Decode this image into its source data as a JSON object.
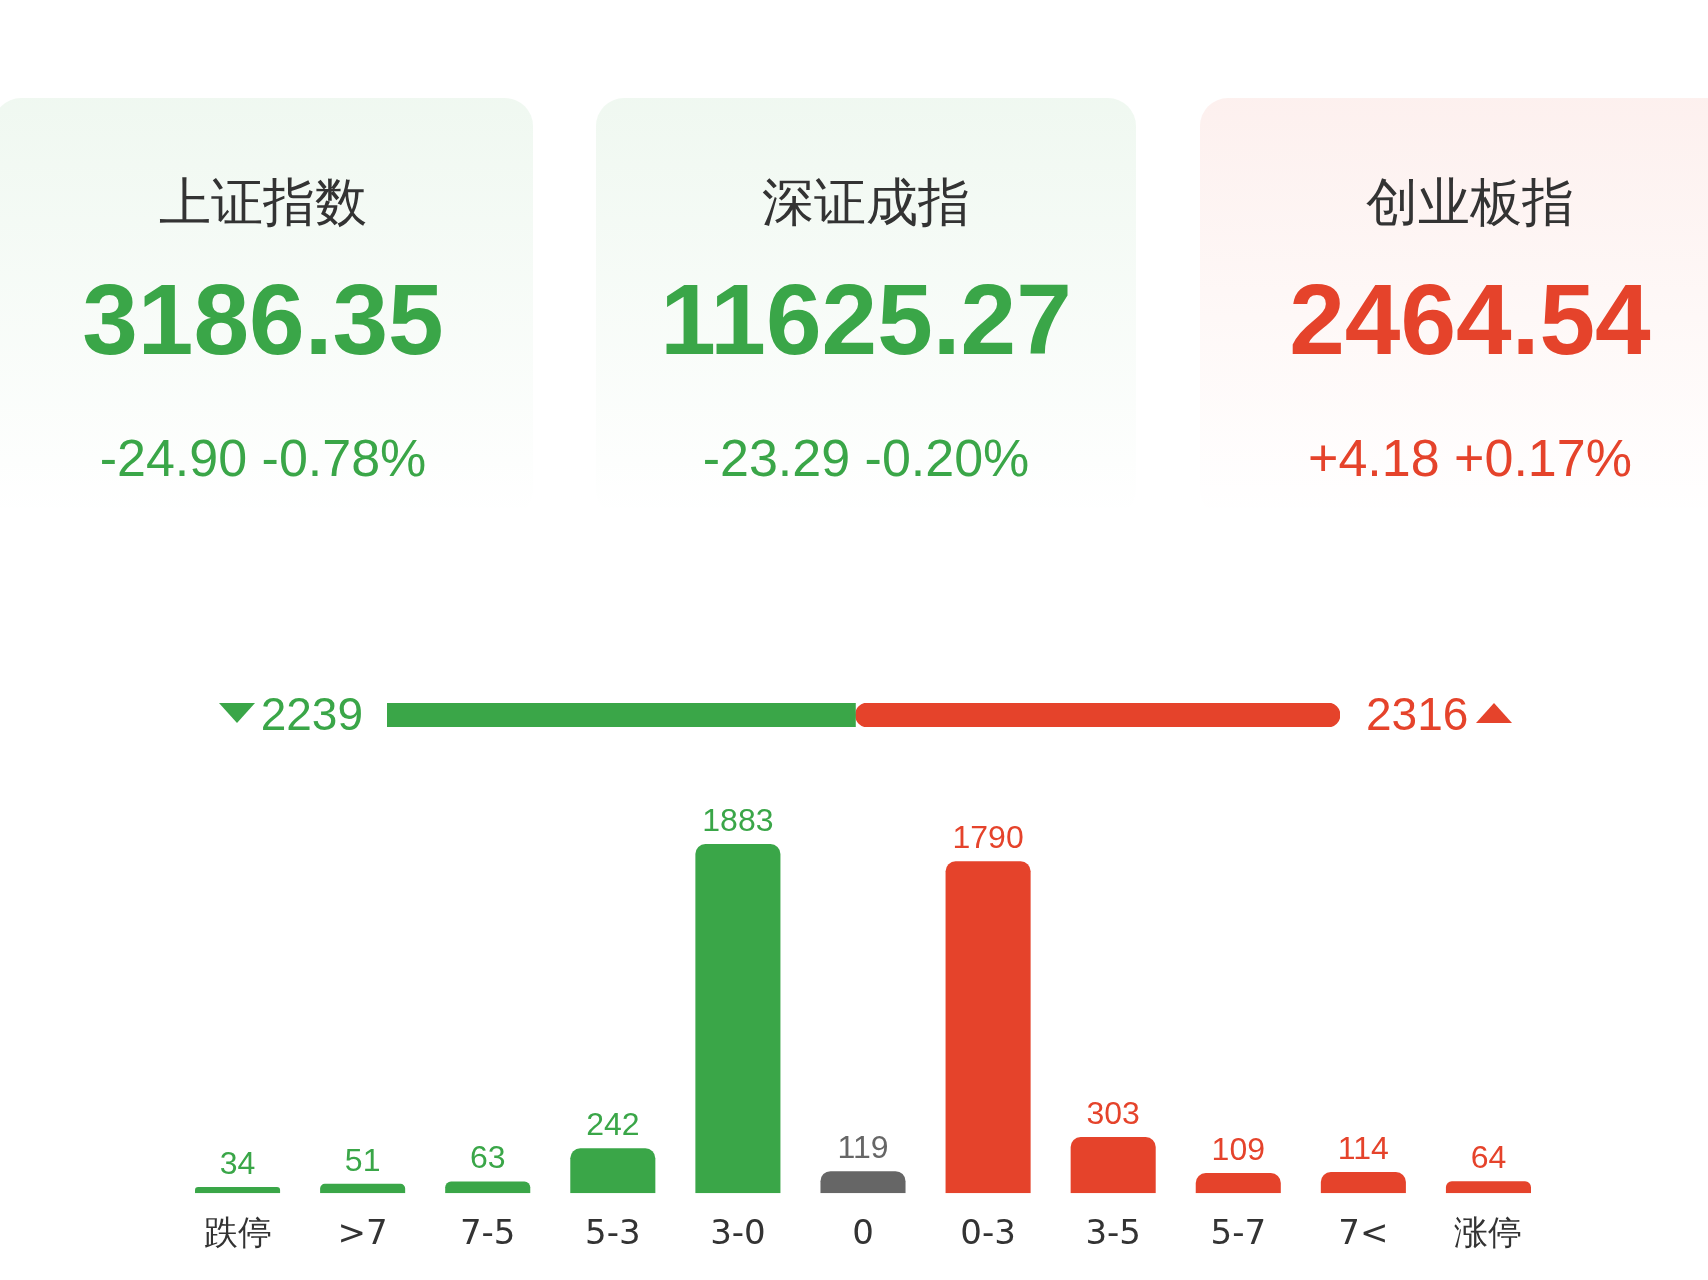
{
  "chart_data": [
    {
      "type": "other",
      "categories": [
        "上证指数",
        "深证成指",
        "创业板指"
      ],
      "values": [
        3186.35,
        11625.27,
        2464.54
      ],
      "data_labels": true,
      "colors": [
        "#3aa648",
        "#3aa648",
        "#e5432b"
      ],
      "annotations": [
        "-24.90 -0.78%",
        "-23.29 -0.20%",
        "+4.18 +0.17%"
      ]
    },
    {
      "type": "bar",
      "orientation": "horizontal",
      "stacked": true,
      "categories": [
        null
      ],
      "xlim": [
        0,
        4555
      ],
      "tick_labels": false,
      "grid": false,
      "legend": false,
      "data_labels": true,
      "series": [
        {
          "color": "#3aa648",
          "values": [
            2239
          ]
        },
        {
          "color": "#e5432b",
          "values": [
            2316
          ]
        }
      ]
    },
    {
      "type": "bar",
      "categories": [
        "跌停",
        ">7",
        "7-5",
        "5-3",
        "3-0",
        "0",
        "0-3",
        "3-5",
        "5-7",
        "7<",
        "涨停"
      ],
      "values": [
        34,
        51,
        63,
        242,
        1883,
        119,
        1790,
        303,
        109,
        114,
        64
      ],
      "colors": [
        "#3aa648",
        "#3aa648",
        "#3aa648",
        "#3aa648",
        "#3aa648",
        "#666666",
        "#e5432b",
        "#e5432b",
        "#e5432b",
        "#e5432b",
        "#e5432b"
      ],
      "ylim": [
        0,
        1883
      ],
      "tick_labels": "x",
      "grid": false,
      "legend": false,
      "data_labels": true
    }
  ]
}
